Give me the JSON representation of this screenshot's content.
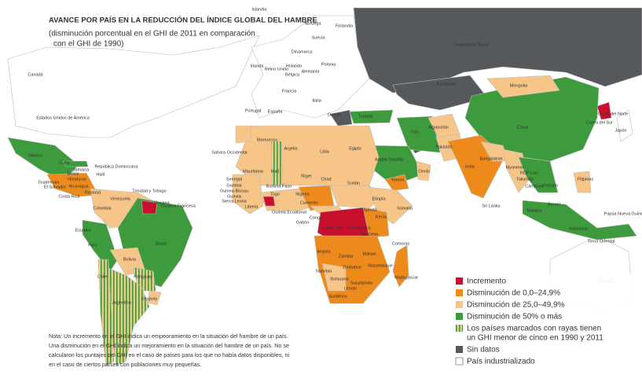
{
  "header": {
    "title": "AVANCE POR PAÍS EN LA REDUCCIÓN DEL ÍNDICE GLOBAL DEL HAMBRE",
    "subtitle": [
      "(disminución porcentual en el GHI de 2011 en comparación",
      "con el GHI de 1990)"
    ]
  },
  "map": {
    "labels": [
      "Islandia",
      "Noruega",
      "Finlandia",
      "Suecia",
      "Dinamarca",
      "Federación Rusa",
      "Canadá",
      "Irlanda",
      "Reino Unido",
      "Holanda",
      "Bélgica",
      "Alemania",
      "Polonia",
      "Francia",
      "Portugal",
      "España",
      "Italia",
      "Grecia",
      "Turquía",
      "Kazajstán",
      "Estados Unidos de América",
      "Mongolia",
      "China",
      "Corea del Norte",
      "Corea del Sur",
      "Japón",
      "Marruecos",
      "Argelia",
      "Libia",
      "Egipto",
      "Sahara Occidental",
      "Irán",
      "Afganistán",
      "Pakistán",
      "India",
      "Bangladesh",
      "Myanmar",
      "RDP Lao",
      "Tailandia",
      "Camboya",
      "Vietnam",
      "Filipinas",
      "Arabia Saudita",
      "Omán",
      "Yemen",
      "México",
      "Cuba",
      "República Dominicana",
      "Haití",
      "Jamaica",
      "Belice",
      "Guatemala",
      "Honduras",
      "El Salvador",
      "Nicaragua",
      "Costa Rica",
      "Panamá",
      "Venezuela",
      "Colombia",
      "Trinidad y Tobago",
      "Guyana",
      "Guyana Francesa",
      "Ecuador",
      "Perú",
      "Brasil",
      "Bolivia",
      "Paraguay",
      "Chile",
      "Argentina",
      "Uruguay",
      "Mauritania",
      "Malí",
      "Níger",
      "Chad",
      "Sudán",
      "Senegal",
      "Gambia",
      "Guinea-Bissau",
      "Guinea",
      "Sierra Leona",
      "Liberia",
      "Burkina Faso",
      "Togo",
      "Nigeria",
      "Etiopía",
      "Somalia",
      "Kenia",
      "Uganda",
      "Camerún",
      "Gabón",
      "Congo",
      "Congo, Rep. Democrática",
      "Guinea Ecuatorial",
      "Tanzania",
      "Angola",
      "Zambia",
      "Malawi",
      "Mozambique",
      "Zimbabue",
      "Namibia",
      "Botsuana",
      "Suazilandia",
      "Lesoto",
      "Sudáfrica",
      "Madagascar",
      "Comoras",
      "Sri Lanka",
      "Malasia",
      "Brunéi",
      "Indonesia",
      "Timor Oriental",
      "Papúa Nueva Guinea",
      "Australia"
    ]
  },
  "legend": {
    "items": [
      {
        "label": "Incremento",
        "color": "#c8102e"
      },
      {
        "label": "Disminución de 0,0–24,9%",
        "color": "#ee8a1c"
      },
      {
        "label": "Disminución de 25,0–49,9%",
        "color": "#f7c587"
      },
      {
        "label": "Disminución de 50% o más",
        "color": "#3d9b3d"
      },
      {
        "label": [
          "Los países marcados con rayas tienen",
          "un GHI menor de cinco en 1990 y 2011"
        ],
        "color": "#3d9b3d"
      },
      {
        "label": "Sin datos",
        "color": "#56595c"
      },
      {
        "label": "País industrializado",
        "color": "#ffffff"
      }
    ]
  },
  "note": [
    "Nota: Un incremento en el GHI indica un empeoramiento en la situación del hambre de un país.",
    "Una disminución en el GHI indica un mejoramiento en la situación del hambre de un país. No se",
    "calcularon los puntajes del GHI en el caso de países para los que no había datos disponibles, ni",
    "en el caso de ciertos países con poblaciones muy pequeñas."
  ]
}
